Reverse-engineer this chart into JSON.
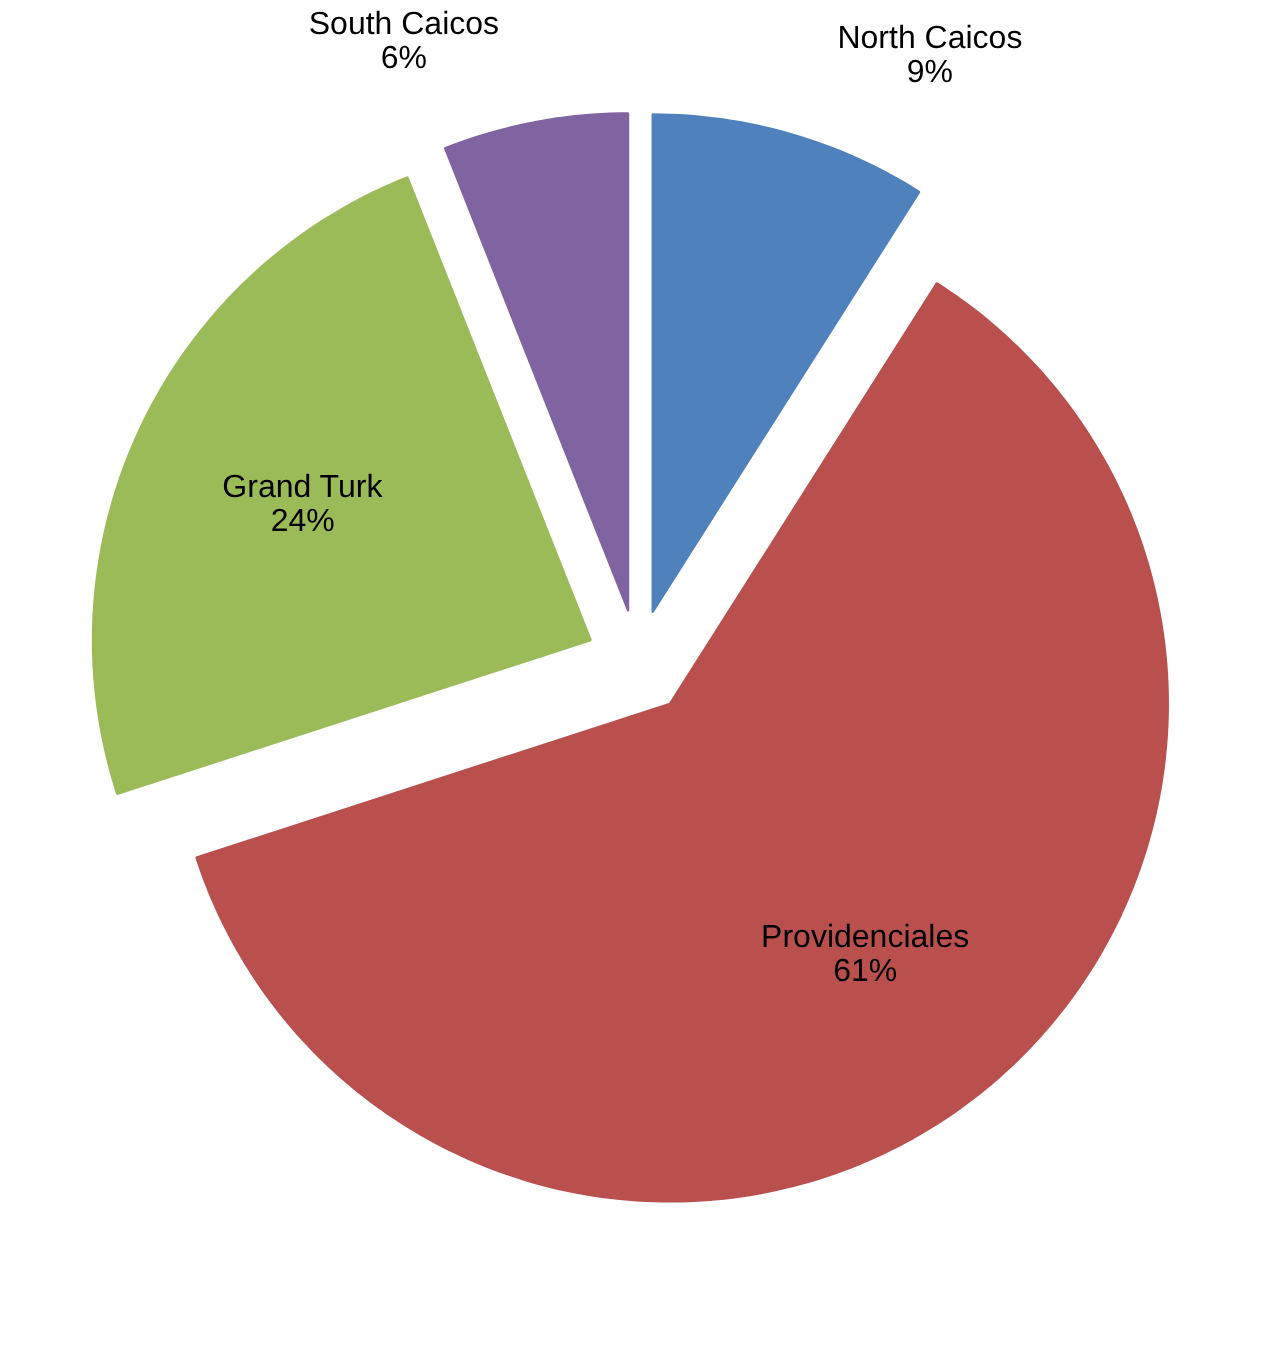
{
  "chart_data": {
    "type": "pie",
    "categories": [
      "North Caicos",
      "Providenciales",
      "Grand Turk",
      "South Caicos"
    ],
    "values": [
      9,
      61,
      24,
      6
    ],
    "colors": [
      "#4f81bd",
      "#b9504e",
      "#9bbb59",
      "#8064a2"
    ],
    "value_labels": [
      "9%",
      "61%",
      "24%",
      "6%"
    ],
    "legend": false
  }
}
